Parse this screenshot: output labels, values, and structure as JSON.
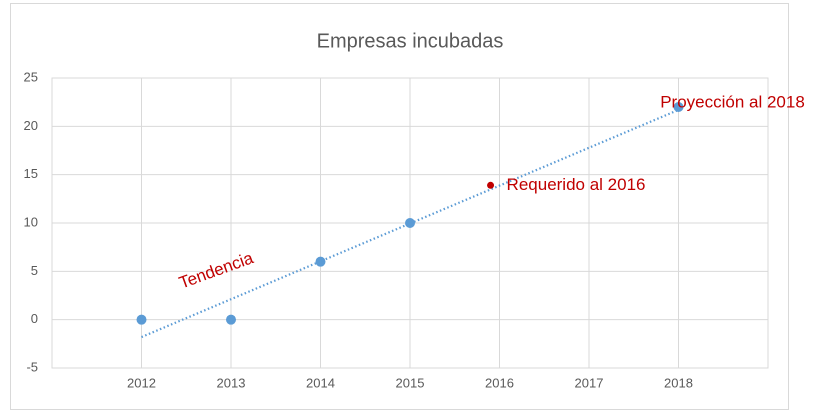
{
  "chart_data": {
    "type": "scatter",
    "title": "Empresas incubadas",
    "xlim": [
      2011,
      2019
    ],
    "xticks": [
      2012,
      2013,
      2014,
      2015,
      2016,
      2017,
      2018
    ],
    "ylim": [
      -5,
      25
    ],
    "yticks": [
      -5,
      0,
      5,
      10,
      15,
      20,
      25
    ],
    "grid": true,
    "series": [
      {
        "color": "#5b9bd5",
        "x": [
          2012,
          2013,
          2014,
          2015,
          2018
        ],
        "values": [
          0,
          0,
          6,
          10,
          22
        ]
      },
      {
        "name": "Tendencia",
        "type": "trendline",
        "color": "#5b9bd5",
        "x": [
          2012,
          2018
        ],
        "values": [
          -1.8,
          21.7
        ]
      }
    ],
    "annotations": [
      {
        "text": "Requerido al 2016",
        "x": 2015.9,
        "y": 13.9,
        "color": "#c00000"
      },
      {
        "text": "Proyección al 2018",
        "color": "#c00000"
      }
    ]
  }
}
